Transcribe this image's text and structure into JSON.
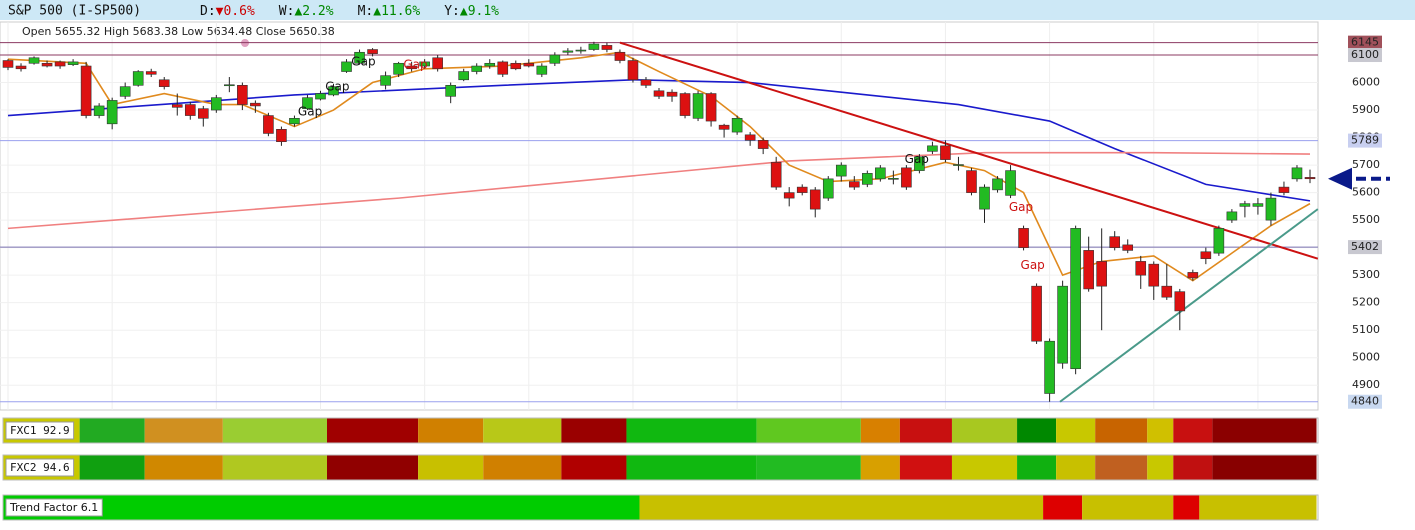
{
  "header": {
    "title": "S&P 500 (I-SP500)",
    "items": [
      {
        "label": "D:",
        "value": "▼0.6%",
        "color": "#cc0000"
      },
      {
        "label": "W:",
        "value": "▲2.2%",
        "color": "#008800"
      },
      {
        "label": "M:",
        "value": "▲11.6%",
        "color": "#008800"
      },
      {
        "label": "Y:",
        "value": "▲9.1%",
        "color": "#008800"
      }
    ],
    "ohlc_text": "Open 5655.32  High 5683.38  Low 5634.48  Close 5650.38"
  },
  "chart_data": {
    "type": "candlestick",
    "up_color": "#22bb22",
    "down_color": "#dd1111",
    "open": [
      6080,
      6060,
      6070,
      6070,
      6075,
      6065,
      6060,
      5880,
      5850,
      5950,
      5990,
      6040,
      6010,
      5920,
      5920,
      5905,
      5900,
      5990,
      5990,
      5925,
      5880,
      5830,
      5850,
      5905,
      5940,
      5955,
      6040,
      6070,
      6120,
      5990,
      6030,
      6060,
      6060,
      6090,
      5950,
      6010,
      6040,
      6060,
      6075,
      6070,
      6070,
      6030,
      6070,
      6110,
      6115,
      6120,
      6135,
      6110,
      6080,
      6010,
      5970,
      5965,
      5960,
      5870,
      5960,
      5845,
      5820,
      5810,
      5790,
      5710,
      5600,
      5620,
      5610,
      5580,
      5660,
      5640,
      5630,
      5650,
      5650,
      5690,
      5680,
      5750,
      5770,
      5700,
      5680,
      5540,
      5610,
      5590,
      5470,
      5260,
      4870,
      4980,
      4960,
      5390,
      5350,
      5440,
      5410,
      5350,
      5340,
      5260,
      5240,
      5310,
      5385,
      5380,
      5500,
      5550,
      5550,
      5500,
      5620,
      5650,
      5655.32
    ],
    "high": [
      6085,
      6070,
      6095,
      6080,
      6080,
      6085,
      6075,
      5925,
      5945,
      6000,
      6045,
      6050,
      6020,
      5960,
      5930,
      5915,
      5955,
      6020,
      6000,
      5935,
      5890,
      5840,
      5880,
      5955,
      5970,
      5995,
      6085,
      6120,
      6125,
      6040,
      6075,
      6075,
      6085,
      6100,
      6000,
      6050,
      6070,
      6085,
      6080,
      6080,
      6085,
      6070,
      6110,
      6125,
      6130,
      6148,
      6145,
      6120,
      6090,
      6020,
      5980,
      5975,
      5965,
      5970,
      5965,
      5850,
      5880,
      5820,
      5800,
      5730,
      5620,
      5630,
      5620,
      5660,
      5710,
      5660,
      5680,
      5700,
      5680,
      5700,
      5740,
      5785,
      5790,
      5730,
      5690,
      5630,
      5660,
      5700,
      5480,
      5270,
      5070,
      5280,
      5480,
      5440,
      5470,
      5460,
      5430,
      5370,
      5350,
      5340,
      5250,
      5320,
      5400,
      5480,
      5540,
      5570,
      5580,
      5600,
      5640,
      5700,
      5683.38
    ],
    "low": [
      6045,
      6040,
      6065,
      6055,
      6050,
      6060,
      5870,
      5870,
      5830,
      5940,
      5985,
      6020,
      5975,
      5880,
      5865,
      5840,
      5890,
      5965,
      5900,
      5890,
      5805,
      5770,
      5840,
      5900,
      5935,
      5950,
      6035,
      6065,
      6095,
      5975,
      6020,
      6040,
      6050,
      6040,
      5925,
      6005,
      6030,
      6050,
      6020,
      6045,
      6055,
      6020,
      6060,
      6100,
      6105,
      6115,
      6110,
      6070,
      6000,
      5980,
      5940,
      5930,
      5870,
      5860,
      5840,
      5800,
      5810,
      5770,
      5740,
      5610,
      5550,
      5590,
      5510,
      5570,
      5640,
      5610,
      5620,
      5640,
      5630,
      5610,
      5670,
      5740,
      5710,
      5680,
      5590,
      5490,
      5600,
      5580,
      5390,
      5050,
      4840,
      4960,
      4940,
      5240,
      5100,
      5390,
      5380,
      5250,
      5210,
      5210,
      5100,
      5280,
      5340,
      5370,
      5490,
      5510,
      5520,
      5480,
      5590,
      5640,
      5634.48
    ],
    "close": [
      6055,
      6050,
      6090,
      6060,
      6060,
      6075,
      5880,
      5915,
      5935,
      5985,
      6040,
      6030,
      5985,
      5910,
      5880,
      5870,
      5945,
      5992,
      5920,
      5915,
      5815,
      5785,
      5870,
      5945,
      5960,
      5985,
      6075,
      6110,
      6105,
      6025,
      6070,
      6050,
      6075,
      6050,
      5990,
      6040,
      6060,
      6070,
      6030,
      6050,
      6060,
      6060,
      6100,
      6115,
      6118,
      6140,
      6120,
      6080,
      6010,
      5990,
      5950,
      5950,
      5880,
      5960,
      5860,
      5830,
      5870,
      5790,
      5760,
      5620,
      5580,
      5600,
      5540,
      5650,
      5700,
      5620,
      5670,
      5690,
      5652,
      5620,
      5730,
      5770,
      5720,
      5702,
      5600,
      5620,
      5650,
      5680,
      5400,
      5060,
      5060,
      5260,
      5470,
      5250,
      5260,
      5400,
      5390,
      5300,
      5260,
      5220,
      5170,
      5290,
      5360,
      5470,
      5530,
      5560,
      5560,
      5580,
      5600,
      5690,
      5650.38
    ],
    "lines": [
      {
        "color": "#1a1acc",
        "x": [
          0,
          22,
          38,
          48,
          57,
          65,
          73,
          80,
          85,
          92,
          100
        ],
        "values": [
          5880,
          5955,
          5990,
          6010,
          6000,
          5960,
          5920,
          5860,
          5760,
          5630,
          5570
        ]
      },
      {
        "color": "#f08080",
        "x": [
          0,
          30,
          60,
          75,
          88,
          100
        ],
        "values": [
          5470,
          5580,
          5715,
          5745,
          5745,
          5740
        ]
      },
      {
        "color": "#e08a1e",
        "x": [
          0,
          6,
          8,
          12,
          16,
          18,
          22,
          25,
          28,
          32,
          38,
          44,
          47,
          50,
          54,
          57,
          60,
          63,
          67,
          72,
          75,
          78,
          81,
          84,
          88,
          91,
          94,
          97,
          100
        ],
        "values": [
          6085,
          6070,
          5920,
          5960,
          5920,
          5920,
          5840,
          5900,
          6000,
          6050,
          6060,
          6090,
          6110,
          6040,
          5950,
          5840,
          5700,
          5640,
          5650,
          5710,
          5680,
          5600,
          5300,
          5350,
          5370,
          5280,
          5380,
          5480,
          5560
        ]
      }
    ],
    "trendlines": [
      {
        "color": "#cc1111",
        "x": [
          47,
          100.6
        ],
        "values": [
          6145,
          5360
        ]
      },
      {
        "color": "#4a9a8a",
        "x": [
          80.8,
          100.6
        ],
        "values": [
          4840,
          5540
        ]
      }
    ],
    "levels": [
      {
        "value": 6145,
        "line": "#8b3a62",
        "box": "#a0505a"
      },
      {
        "value": 6100,
        "line": "#8b3a62",
        "box": "#c8c8d0"
      },
      {
        "value": 5789,
        "line": "#9aa0ee",
        "box": "#c8cff0"
      },
      {
        "value": 5402,
        "line": "#7a70b0",
        "box": "#c8c8d0"
      },
      {
        "value": 4840,
        "line": "#9aa0ee",
        "box": "#c8d8f0"
      }
    ],
    "annotations": [
      {
        "text": "Gap",
        "x": 27.3,
        "y": 6075,
        "color": "#111"
      },
      {
        "text": "Gap",
        "x": 31.3,
        "y": 6064,
        "color": "#cc1111"
      },
      {
        "text": "Gap",
        "x": 25.3,
        "y": 5984,
        "color": "#111"
      },
      {
        "text": "Gap",
        "x": 23.2,
        "y": 5893,
        "color": "#111"
      },
      {
        "text": "Gap",
        "x": 69.8,
        "y": 5720,
        "color": "#111"
      },
      {
        "text": "Gap",
        "x": 77.8,
        "y": 5545,
        "color": "#cc1111"
      },
      {
        "text": "Gap",
        "x": 78.7,
        "y": 5335,
        "color": "#cc1111"
      }
    ],
    "ylim": [
      4810,
      6220
    ],
    "yticks": [
      4900,
      5000,
      5100,
      5200,
      5300,
      5400,
      5500,
      5600,
      5700,
      5800,
      5900,
      6000
    ],
    "grid": true,
    "strips": [
      {
        "name": "FXC1 92.9",
        "runs": [
          {
            "color": "#c8c800",
            "n": 6
          },
          {
            "color": "#22aa22",
            "n": 5
          },
          {
            "color": "#d09020",
            "n": 6
          },
          {
            "color": "#9acd32",
            "n": 8
          },
          {
            "color": "#a00000",
            "n": 7
          },
          {
            "color": "#d08000",
            "n": 5
          },
          {
            "color": "#b8c818",
            "n": 6
          },
          {
            "color": "#9a0000",
            "n": 5
          },
          {
            "color": "#10b810",
            "n": 10
          },
          {
            "color": "#60c820",
            "n": 8
          },
          {
            "color": "#d88000",
            "n": 3
          },
          {
            "color": "#c81010",
            "n": 4
          },
          {
            "color": "#a8c820",
            "n": 5
          },
          {
            "color": "#008800",
            "n": 3
          },
          {
            "color": "#c8c800",
            "n": 3
          },
          {
            "color": "#c86400",
            "n": 4
          },
          {
            "color": "#d0c000",
            "n": 2
          },
          {
            "color": "#c81010",
            "n": 3
          },
          {
            "color": "#8b0000",
            "n": 8
          }
        ]
      },
      {
        "name": "FXC2 94.6",
        "runs": [
          {
            "color": "#c8c800",
            "n": 6
          },
          {
            "color": "#10a010",
            "n": 5
          },
          {
            "color": "#d08800",
            "n": 6
          },
          {
            "color": "#b0c820",
            "n": 8
          },
          {
            "color": "#900000",
            "n": 7
          },
          {
            "color": "#c8c000",
            "n": 5
          },
          {
            "color": "#d08000",
            "n": 6
          },
          {
            "color": "#b00000",
            "n": 5
          },
          {
            "color": "#10b810",
            "n": 10
          },
          {
            "color": "#22bb22",
            "n": 8
          },
          {
            "color": "#d8a000",
            "n": 3
          },
          {
            "color": "#d01010",
            "n": 4
          },
          {
            "color": "#c8c800",
            "n": 5
          },
          {
            "color": "#10b010",
            "n": 3
          },
          {
            "color": "#c8c000",
            "n": 3
          },
          {
            "color": "#c06020",
            "n": 4
          },
          {
            "color": "#c8c800",
            "n": 2
          },
          {
            "color": "#c01010",
            "n": 3
          },
          {
            "color": "#880000",
            "n": 8
          }
        ]
      },
      {
        "name": "Trend Factor 6.1",
        "runs": [
          {
            "color": "#00cc00",
            "n": 49
          },
          {
            "color": "#c8c000",
            "n": 31
          },
          {
            "color": "#dd0000",
            "n": 3
          },
          {
            "color": "#c8c000",
            "n": 7
          },
          {
            "color": "#dd0000",
            "n": 2
          },
          {
            "color": "#c8c000",
            "n": 9
          }
        ]
      }
    ]
  }
}
